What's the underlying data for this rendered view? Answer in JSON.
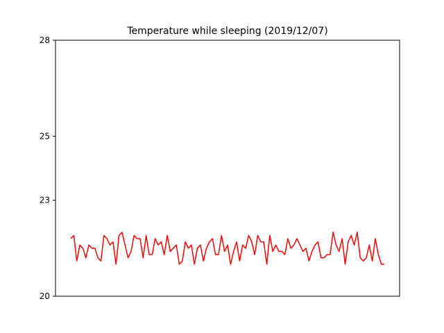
{
  "chart_data": {
    "type": "line",
    "title": "Temperature while sleeping (2019/12/07)",
    "xlabel": "",
    "ylabel": "",
    "x_tick_labels": false,
    "grid": false,
    "ylim": [
      20,
      28
    ],
    "y_tick_values": [
      20,
      23,
      25,
      28
    ],
    "y_tick_labels": [
      "20",
      "23",
      "25",
      "28"
    ],
    "series": [
      {
        "color": "#ff0000",
        "values": [
          21.8,
          21.9,
          21.1,
          21.6,
          21.5,
          21.2,
          21.6,
          21.5,
          21.5,
          21.2,
          21.1,
          21.9,
          21.8,
          21.6,
          21.7,
          21.0,
          21.9,
          22.0,
          21.6,
          21.2,
          21.4,
          21.9,
          21.8,
          21.8,
          21.2,
          21.9,
          21.3,
          21.3,
          21.8,
          21.6,
          21.7,
          21.3,
          21.9,
          21.4,
          21.5,
          21.6,
          21.0,
          21.1,
          21.7,
          21.5,
          21.6,
          21.0,
          21.5,
          21.6,
          21.1,
          21.5,
          21.7,
          21.8,
          21.3,
          21.3,
          21.9,
          21.4,
          21.6,
          21.0,
          21.4,
          21.7,
          21.1,
          21.6,
          21.5,
          21.9,
          21.7,
          21.3,
          21.9,
          21.7,
          21.7,
          21.0,
          21.9,
          21.4,
          21.6,
          21.4,
          21.4,
          21.3,
          21.8,
          21.5,
          21.6,
          21.8,
          21.6,
          21.4,
          21.5,
          21.1,
          21.4,
          21.6,
          21.7,
          21.2,
          21.2,
          21.3,
          21.3,
          22.0,
          21.6,
          21.4,
          21.8,
          21.0,
          21.7,
          21.9,
          21.6,
          22.0,
          21.2,
          21.1,
          21.2,
          21.6,
          21.1,
          21.8,
          21.3,
          21.0,
          21.0
        ]
      }
    ]
  }
}
